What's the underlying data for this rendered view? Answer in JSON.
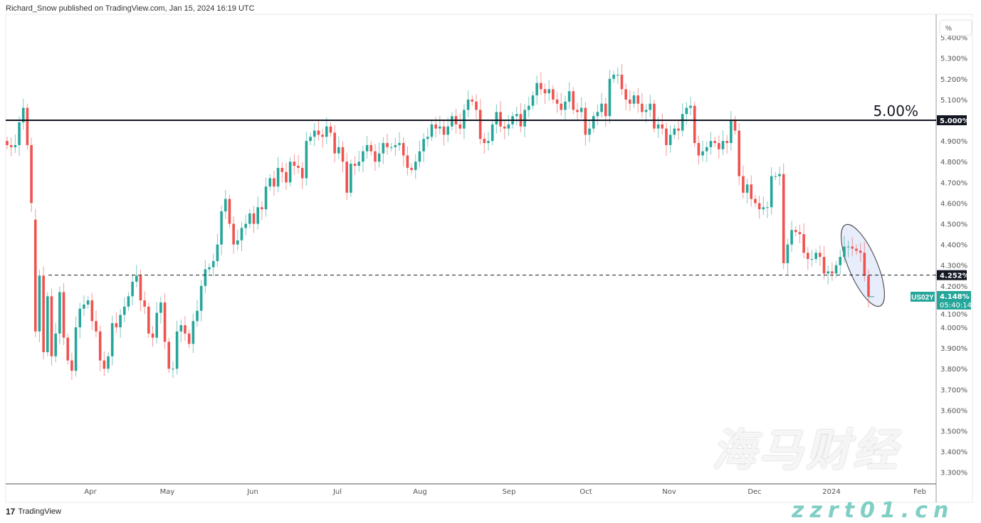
{
  "header": {
    "text": "Richard_Snow published on TradingView.com, Jan 15, 2024 16:19 UTC"
  },
  "footer": {
    "logo_text": "TradingView",
    "logo_mark": "17"
  },
  "watermark": {
    "line1": "海马财经",
    "line2": "zzrt01.cn"
  },
  "colors": {
    "up": "#26a69a",
    "down": "#ef5350",
    "label_bg": "#131722",
    "ellipse_fill": "#e8edfb"
  },
  "chart_data": {
    "type": "candlestick",
    "symbol": "US02Y",
    "unit_button": "%",
    "y_ticks": [
      "5.400%",
      "5.300%",
      "5.200%",
      "5.100%",
      "5.000%",
      "4.900%",
      "4.800%",
      "4.700%",
      "4.600%",
      "4.500%",
      "4.400%",
      "4.300%",
      "4.200%",
      "4.100%",
      "4.000%",
      "3.900%",
      "3.800%",
      "3.700%",
      "3.600%",
      "3.500%",
      "3.400%",
      "3.300%"
    ],
    "ylim": [
      3.3,
      5.4
    ],
    "x_ticks": [
      "Apr",
      "May",
      "Jun",
      "Jul",
      "Aug",
      "Sep",
      "Oct",
      "Nov",
      "Dec",
      "2024",
      "Feb"
    ],
    "closes": [
      4.88,
      4.87,
      4.88,
      4.99,
      5.06,
      4.88,
      4.6,
      3.98,
      4.25,
      3.88,
      4.15,
      3.86,
      3.97,
      4.17,
      3.95,
      3.84,
      3.79,
      4.0,
      4.09,
      4.11,
      4.13,
      4.03,
      3.98,
      3.84,
      3.8,
      3.86,
      4.02,
      4.0,
      4.06,
      4.1,
      4.15,
      4.22,
      4.25,
      4.13,
      4.1,
      3.97,
      3.95,
      4.07,
      4.12,
      3.93,
      3.8,
      3.8,
      3.98,
      4.01,
      3.97,
      3.92,
      4.03,
      4.08,
      4.2,
      4.28,
      4.29,
      4.32,
      4.4,
      4.56,
      4.62,
      4.5,
      4.4,
      4.42,
      4.48,
      4.5,
      4.55,
      4.5,
      4.58,
      4.57,
      4.68,
      4.72,
      4.68,
      4.77,
      4.75,
      4.7,
      4.8,
      4.78,
      4.77,
      4.72,
      4.9,
      4.92,
      4.95,
      4.93,
      4.92,
      4.97,
      4.94,
      4.84,
      4.87,
      4.8,
      4.65,
      4.79,
      4.78,
      4.8,
      4.85,
      4.88,
      4.85,
      4.8,
      4.84,
      4.89,
      4.87,
      4.87,
      4.88,
      4.89,
      4.83,
      4.77,
      4.76,
      4.8,
      4.85,
      4.91,
      4.92,
      4.98,
      4.96,
      4.97,
      4.93,
      4.97,
      5.02,
      4.98,
      4.96,
      5.05,
      5.1,
      5.09,
      5.05,
      4.91,
      4.89,
      4.9,
      4.98,
      5.04,
      4.97,
      4.96,
      4.98,
      5.02,
      5.03,
      4.97,
      5.05,
      5.07,
      5.12,
      5.18,
      5.15,
      5.13,
      5.15,
      5.1,
      5.08,
      5.05,
      5.09,
      5.14,
      5.05,
      5.04,
      5.06,
      4.93,
      4.96,
      5.02,
      5.04,
      5.08,
      5.02,
      5.2,
      5.22,
      5.22,
      5.15,
      5.1,
      5.08,
      5.12,
      5.08,
      5.04,
      5.05,
      5.08,
      4.96,
      4.98,
      4.96,
      4.88,
      4.93,
      4.96,
      4.95,
      5.03,
      5.06,
      5.07,
      4.89,
      4.83,
      4.85,
      4.87,
      4.9,
      4.89,
      4.86,
      4.9,
      4.89,
      5.0,
      4.95,
      4.73,
      4.65,
      4.69,
      4.62,
      4.6,
      4.57,
      4.58,
      4.58,
      4.73,
      4.73,
      4.74,
      4.31,
      4.4,
      4.47,
      4.46,
      4.45,
      4.36,
      4.33,
      4.33,
      4.36,
      4.34,
      4.26,
      4.27,
      4.26,
      4.3,
      4.34,
      4.39,
      4.39,
      4.38,
      4.37,
      4.36,
      4.25,
      4.148
    ],
    "first_open": 4.9,
    "horizontal_line": {
      "value": 5.0,
      "label": "5.00%",
      "axis_label": "5.000%"
    },
    "dashed_line": {
      "value": 4.252,
      "axis_label": "4.252%"
    },
    "last_price": {
      "value": 4.148,
      "label": "4.148%",
      "countdown": "05:40:14"
    }
  }
}
